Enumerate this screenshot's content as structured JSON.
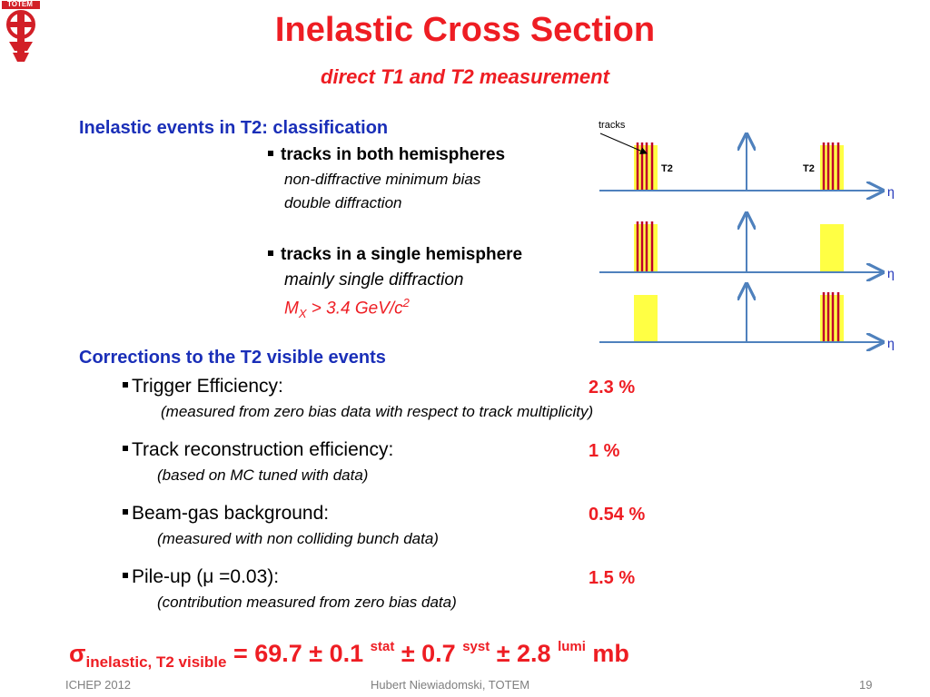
{
  "slide": {
    "title": "Inelastic Cross Section",
    "subtitle": "direct T1 and T2 measurement",
    "logo_text": "TOTEM"
  },
  "classification": {
    "heading": "Inelastic events in T2: classification",
    "items": [
      {
        "label": "tracks in both hemispheres",
        "lines": [
          "non-diffractive minimum bias",
          "double diffraction"
        ]
      },
      {
        "label": "tracks in a single hemisphere",
        "lines": [
          "mainly single diffraction"
        ],
        "mass_pre": "M",
        "mass_sub": "X",
        "mass_mid": " > 3.4 GeV/c",
        "mass_sup": "2"
      }
    ]
  },
  "diagram": {
    "tracks_label": "tracks",
    "detector_label": "T2",
    "axis_label": "η",
    "colors": {
      "track": "#c0002a",
      "detector": "#ffff44",
      "axis": "#4f81bd"
    },
    "rows": [
      {
        "left_tracks": true,
        "right_tracks": true
      },
      {
        "left_tracks": true,
        "right_tracks": false
      },
      {
        "left_tracks": false,
        "right_tracks": true
      }
    ]
  },
  "corrections": {
    "heading": "Corrections to the T2 visible events",
    "items": [
      {
        "label": "Trigger Efficiency:",
        "value": "2.3 %",
        "note": "(measured from zero bias data with respect to track multiplicity)"
      },
      {
        "label": "Track reconstruction efficiency:",
        "value": "1 %",
        "note": "(based on MC tuned with data)"
      },
      {
        "label": "Beam-gas background:",
        "value": "0.54 %",
        "note": "(measured with non colliding bunch data)"
      },
      {
        "label": "Pile-up (μ =0.03):",
        "value": "1.5 %",
        "note": "(contribution measured from zero bias data)"
      }
    ]
  },
  "result": {
    "sigma": "σ",
    "subscript": "inelastic, T2 visible",
    "value": " = 69.7 ± 0.1 ",
    "stat": "stat",
    "syst_part": " ± 0.7 ",
    "syst": "syst",
    "lumi_part": " ± 2.8 ",
    "lumi": "lumi",
    "unit": " mb"
  },
  "footer": {
    "left": "ICHEP 2012",
    "center": "Hubert Niewiadomski, TOTEM",
    "page": "19"
  }
}
